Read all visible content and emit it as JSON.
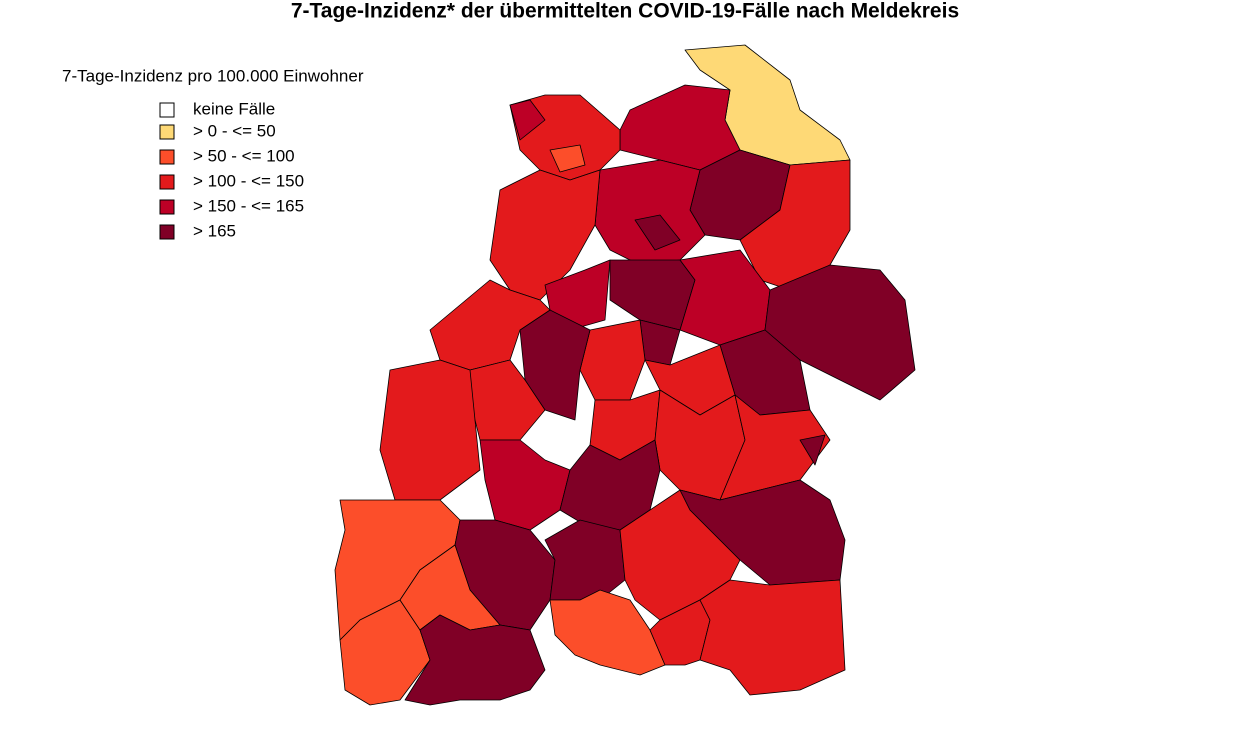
{
  "title": "7-Tage-Inzidenz* der übermittelten COVID-19-Fälle nach Meldekreis",
  "legend": {
    "title": "7-Tage-Inzidenz pro 100.000 Einwohner",
    "items": [
      {
        "label": "keine Fälle",
        "color": "#ffffff"
      },
      {
        "label": "> 0 - <= 50",
        "color": "#fed976"
      },
      {
        "label": "> 50 - <= 100",
        "color": "#fc4e2a"
      },
      {
        "label": "> 100 - <= 150",
        "color": "#e31a1c"
      },
      {
        "label": "> 150 - <= 165",
        "color": "#bd0026"
      },
      {
        "label": "> 165",
        "color": "#800026"
      }
    ]
  }
}
